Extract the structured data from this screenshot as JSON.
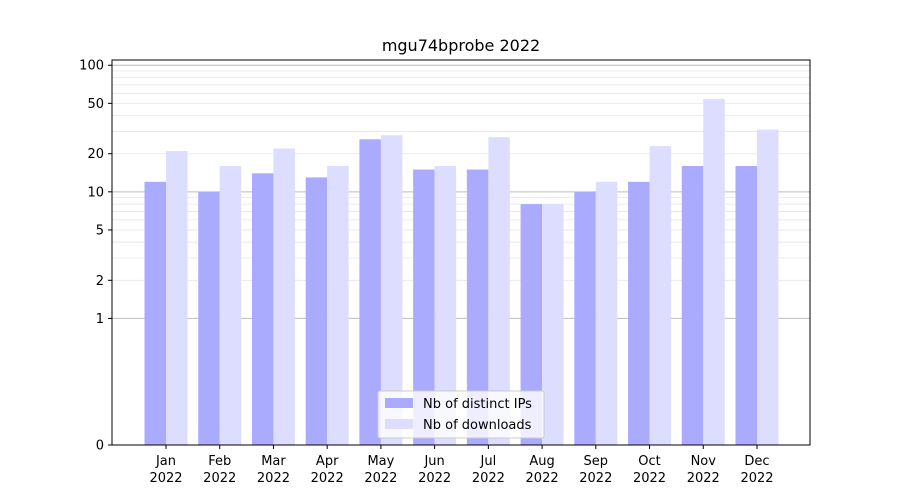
{
  "chart_data": {
    "type": "bar",
    "title": "mgu74bprobe 2022",
    "xlabel": "",
    "ylabel": "",
    "scale": "symlog",
    "ylim": [
      0,
      110
    ],
    "y_ticks": [
      0,
      1,
      2,
      5,
      10,
      20,
      50,
      100
    ],
    "categories": [
      [
        "Jan",
        "2022"
      ],
      [
        "Feb",
        "2022"
      ],
      [
        "Mar",
        "2022"
      ],
      [
        "Apr",
        "2022"
      ],
      [
        "May",
        "2022"
      ],
      [
        "Jun",
        "2022"
      ],
      [
        "Jul",
        "2022"
      ],
      [
        "Aug",
        "2022"
      ],
      [
        "Sep",
        "2022"
      ],
      [
        "Oct",
        "2022"
      ],
      [
        "Nov",
        "2022"
      ],
      [
        "Dec",
        "2022"
      ]
    ],
    "series": [
      {
        "name": "Nb of distinct IPs",
        "color": "#aaaaff",
        "values": [
          12,
          10,
          14,
          13,
          26,
          15,
          15,
          8,
          10,
          12,
          16,
          16
        ]
      },
      {
        "name": "Nb of downloads",
        "color": "#ddddff",
        "values": [
          21,
          16,
          22,
          16,
          28,
          16,
          27,
          8,
          12,
          23,
          54,
          31
        ]
      }
    ],
    "legend_position": "bottom-center",
    "grid": "y-major-and-minor"
  }
}
